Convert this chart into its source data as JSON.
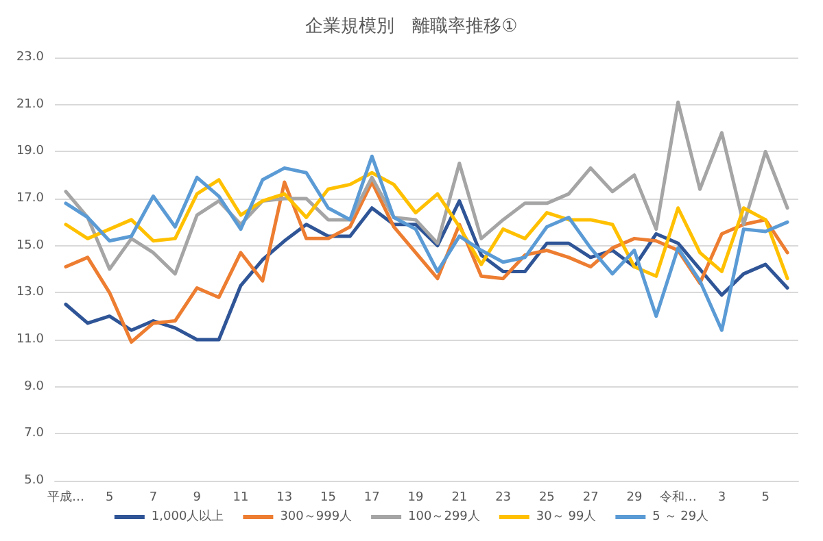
{
  "chart_data": {
    "type": "line",
    "title": "企業規模別　離職率推移①",
    "categories": [
      "平成…",
      null,
      "5",
      null,
      "7",
      null,
      "9",
      null,
      "11",
      null,
      "13",
      null,
      "15",
      null,
      "17",
      null,
      "19",
      null,
      "21",
      null,
      "23",
      null,
      "25",
      null,
      "27",
      null,
      "29",
      null,
      "令和…",
      null,
      "3",
      null,
      "5",
      null
    ],
    "series": [
      {
        "name": "1,000人以上",
        "color": "#2f5597",
        "values": [
          12.5,
          11.7,
          12.0,
          11.4,
          11.8,
          11.5,
          11.0,
          11.0,
          13.3,
          14.4,
          15.2,
          15.9,
          15.4,
          15.4,
          16.6,
          15.9,
          15.9,
          15.0,
          16.9,
          14.6,
          13.9,
          13.9,
          15.1,
          15.1,
          14.5,
          14.8,
          14.1,
          15.5,
          15.1,
          14.0,
          12.9,
          13.8,
          14.2,
          13.2
        ]
      },
      {
        "name": "300～999人",
        "color": "#ed7d31",
        "values": [
          14.1,
          14.5,
          13.0,
          10.9,
          11.7,
          11.8,
          13.2,
          12.8,
          14.7,
          13.5,
          17.7,
          15.3,
          15.3,
          15.8,
          17.7,
          15.8,
          14.7,
          13.6,
          15.9,
          13.7,
          13.6,
          14.6,
          14.8,
          14.5,
          14.1,
          14.9,
          15.3,
          15.2,
          14.8,
          13.4,
          15.5,
          15.9,
          16.1,
          14.7
        ]
      },
      {
        "name": "100～299人",
        "color": "#a5a5a5",
        "values": [
          17.3,
          16.2,
          14.0,
          15.3,
          14.7,
          13.8,
          16.3,
          16.9,
          15.9,
          16.9,
          17.0,
          17.0,
          16.1,
          16.1,
          17.9,
          16.2,
          16.1,
          15.1,
          18.5,
          15.3,
          16.1,
          16.8,
          16.8,
          17.2,
          18.3,
          17.3,
          18.0,
          15.7,
          21.1,
          17.4,
          19.8,
          15.9,
          19.0,
          16.6
        ]
      },
      {
        "name": "30～ 99人",
        "color": "#ffc000",
        "values": [
          15.9,
          15.3,
          15.7,
          16.1,
          15.2,
          15.3,
          17.2,
          17.8,
          16.3,
          16.9,
          17.2,
          16.2,
          17.4,
          17.6,
          18.1,
          17.6,
          16.4,
          17.2,
          15.8,
          14.2,
          15.7,
          15.3,
          16.4,
          16.1,
          16.1,
          15.9,
          14.1,
          13.7,
          16.6,
          14.7,
          13.9,
          16.6,
          16.1,
          13.6
        ]
      },
      {
        "name": "5 ～ 29人",
        "color": "#5b9bd5",
        "values": [
          16.8,
          16.2,
          15.2,
          15.4,
          17.1,
          15.8,
          17.9,
          17.1,
          15.7,
          17.8,
          18.3,
          18.1,
          16.6,
          16.1,
          18.8,
          16.2,
          15.7,
          13.9,
          15.4,
          14.8,
          14.3,
          14.5,
          15.8,
          16.2,
          14.9,
          13.8,
          14.8,
          12.0,
          14.9,
          13.5,
          11.4,
          15.7,
          15.6,
          16.0
        ]
      }
    ],
    "ylim": [
      5,
      23
    ],
    "yticks": [
      {
        "value": 5,
        "label": "5.0"
      },
      {
        "value": 7,
        "label": "7.0"
      },
      {
        "value": 9,
        "label": "9.0"
      },
      {
        "value": 11,
        "label": "11.0"
      },
      {
        "value": 13,
        "label": "13.0"
      },
      {
        "value": 15,
        "label": "15.0"
      },
      {
        "value": 17,
        "label": "17.0"
      },
      {
        "value": 19,
        "label": "19.0"
      },
      {
        "value": 21,
        "label": "21.0"
      },
      {
        "value": 23,
        "label": "23.0"
      }
    ],
    "grid": "y",
    "legend": "bottom",
    "marker": "none",
    "line_style": "solid"
  }
}
